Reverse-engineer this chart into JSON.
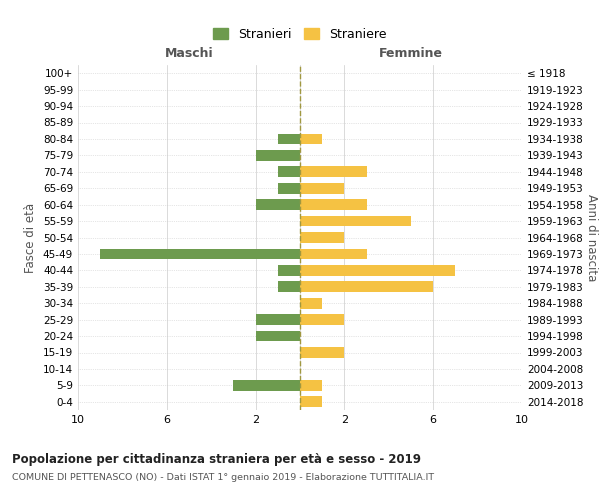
{
  "age_groups": [
    "0-4",
    "5-9",
    "10-14",
    "15-19",
    "20-24",
    "25-29",
    "30-34",
    "35-39",
    "40-44",
    "45-49",
    "50-54",
    "55-59",
    "60-64",
    "65-69",
    "70-74",
    "75-79",
    "80-84",
    "85-89",
    "90-94",
    "95-99",
    "100+"
  ],
  "birth_years": [
    "2014-2018",
    "2009-2013",
    "2004-2008",
    "1999-2003",
    "1994-1998",
    "1989-1993",
    "1984-1988",
    "1979-1983",
    "1974-1978",
    "1969-1973",
    "1964-1968",
    "1959-1963",
    "1954-1958",
    "1949-1953",
    "1944-1948",
    "1939-1943",
    "1934-1938",
    "1929-1933",
    "1924-1928",
    "1919-1923",
    "≤ 1918"
  ],
  "maschi": [
    0,
    3,
    0,
    0,
    2,
    2,
    0,
    1,
    1,
    9,
    0,
    0,
    2,
    1,
    1,
    2,
    1,
    0,
    0,
    0,
    0
  ],
  "femmine": [
    1,
    1,
    0,
    2,
    0,
    2,
    1,
    6,
    7,
    3,
    2,
    5,
    3,
    2,
    3,
    0,
    1,
    0,
    0,
    0,
    0
  ],
  "maschi_color": "#6d9b4e",
  "femmine_color": "#f5c243",
  "center_line_color": "#a09840",
  "grid_color": "#cccccc",
  "bg_color": "#ffffff",
  "title": "Popolazione per cittadinanza straniera per età e sesso - 2019",
  "subtitle": "COMUNE DI PETTENASCO (NO) - Dati ISTAT 1° gennaio 2019 - Elaborazione TUTTITALIA.IT",
  "xlabel_left": "Maschi",
  "xlabel_right": "Femmine",
  "ylabel_left": "Fasce di età",
  "ylabel_right": "Anni di nascita",
  "legend_maschi": "Stranieri",
  "legend_femmine": "Straniere",
  "xlim_val": 10
}
